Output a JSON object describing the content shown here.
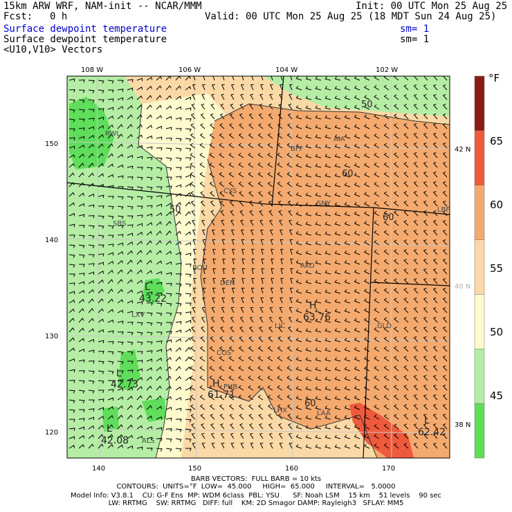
{
  "header": {
    "model_title": "15km ARW WRF, NAM-init -- NCAR/MMM",
    "init": "Init: 00 UTC Mon 25 Aug 25",
    "fcst_label": "Fcst:",
    "fcst_value": "0 h",
    "valid": "Valid: 00 UTC Mon 25 Aug 25 (18 MDT Sun 24 Aug 25)",
    "field1": "Surface dewpoint temperature",
    "field1_sm": "sm= 1",
    "field2": "Surface dewpoint temperature",
    "field2_sm": "sm= 1",
    "field3": "<U10,V10> Vectors"
  },
  "map": {
    "top_lon_labels": [
      "108 W",
      "106 W",
      "104 W",
      "102 W"
    ],
    "right_lat_labels": [
      "42 N",
      "40 N",
      "38 N"
    ],
    "left_grid_labels": [
      "150",
      "140",
      "130",
      "120"
    ],
    "bottom_grid_labels": [
      "140",
      "150",
      "160",
      "170"
    ],
    "stations": [
      "RWL",
      "BFF",
      "AIA",
      "CYS",
      "SNY",
      "LBF",
      "SBS",
      "BOU",
      "DEN",
      "AKO",
      "LXV",
      "LIC",
      "GLD",
      "COS",
      "PUB",
      "LHX",
      "LAA",
      "ALS"
    ],
    "contour_labels": [
      "50",
      "50",
      "60",
      "60",
      "60"
    ],
    "extrema": [
      {
        "type": "L",
        "value": "43.22"
      },
      {
        "type": "H",
        "value": "63.76"
      },
      {
        "type": "L",
        "value": "42.73"
      },
      {
        "type": "H",
        "value": "61.71"
      },
      {
        "type": "L",
        "value": "42.08"
      },
      {
        "type": "L",
        "value": "62.42"
      }
    ]
  },
  "legend": {
    "unit": "°F",
    "labels": [
      "65",
      "60",
      "55",
      "50",
      "45"
    ],
    "colors": [
      "#8a1c14",
      "#ee5a3c",
      "#f4aa6e",
      "#fbd9a6",
      "#fdfacd",
      "#b5eda5",
      "#5fdd5b"
    ]
  },
  "footer": {
    "barb": "BARB VECTORS:  FULL BARB = 10 kts",
    "contours": "CONTOURS:  UNITS=°F  LOW=  45.000     HIGH=  65.000     INTERVAL=   5.0000",
    "model_info1": "Model Info: V3.8.1    CU: G-F Ens  MP: WDM 6class  PBL: YSU      SF: Noah LSM    15 km    51 levels    90 sec",
    "model_info2": "LW: RRTMG    SW: RRTMG   DIFF: full    KM: 2D Smagor DAMP: Rayleigh3   SFLAY: MM5"
  }
}
